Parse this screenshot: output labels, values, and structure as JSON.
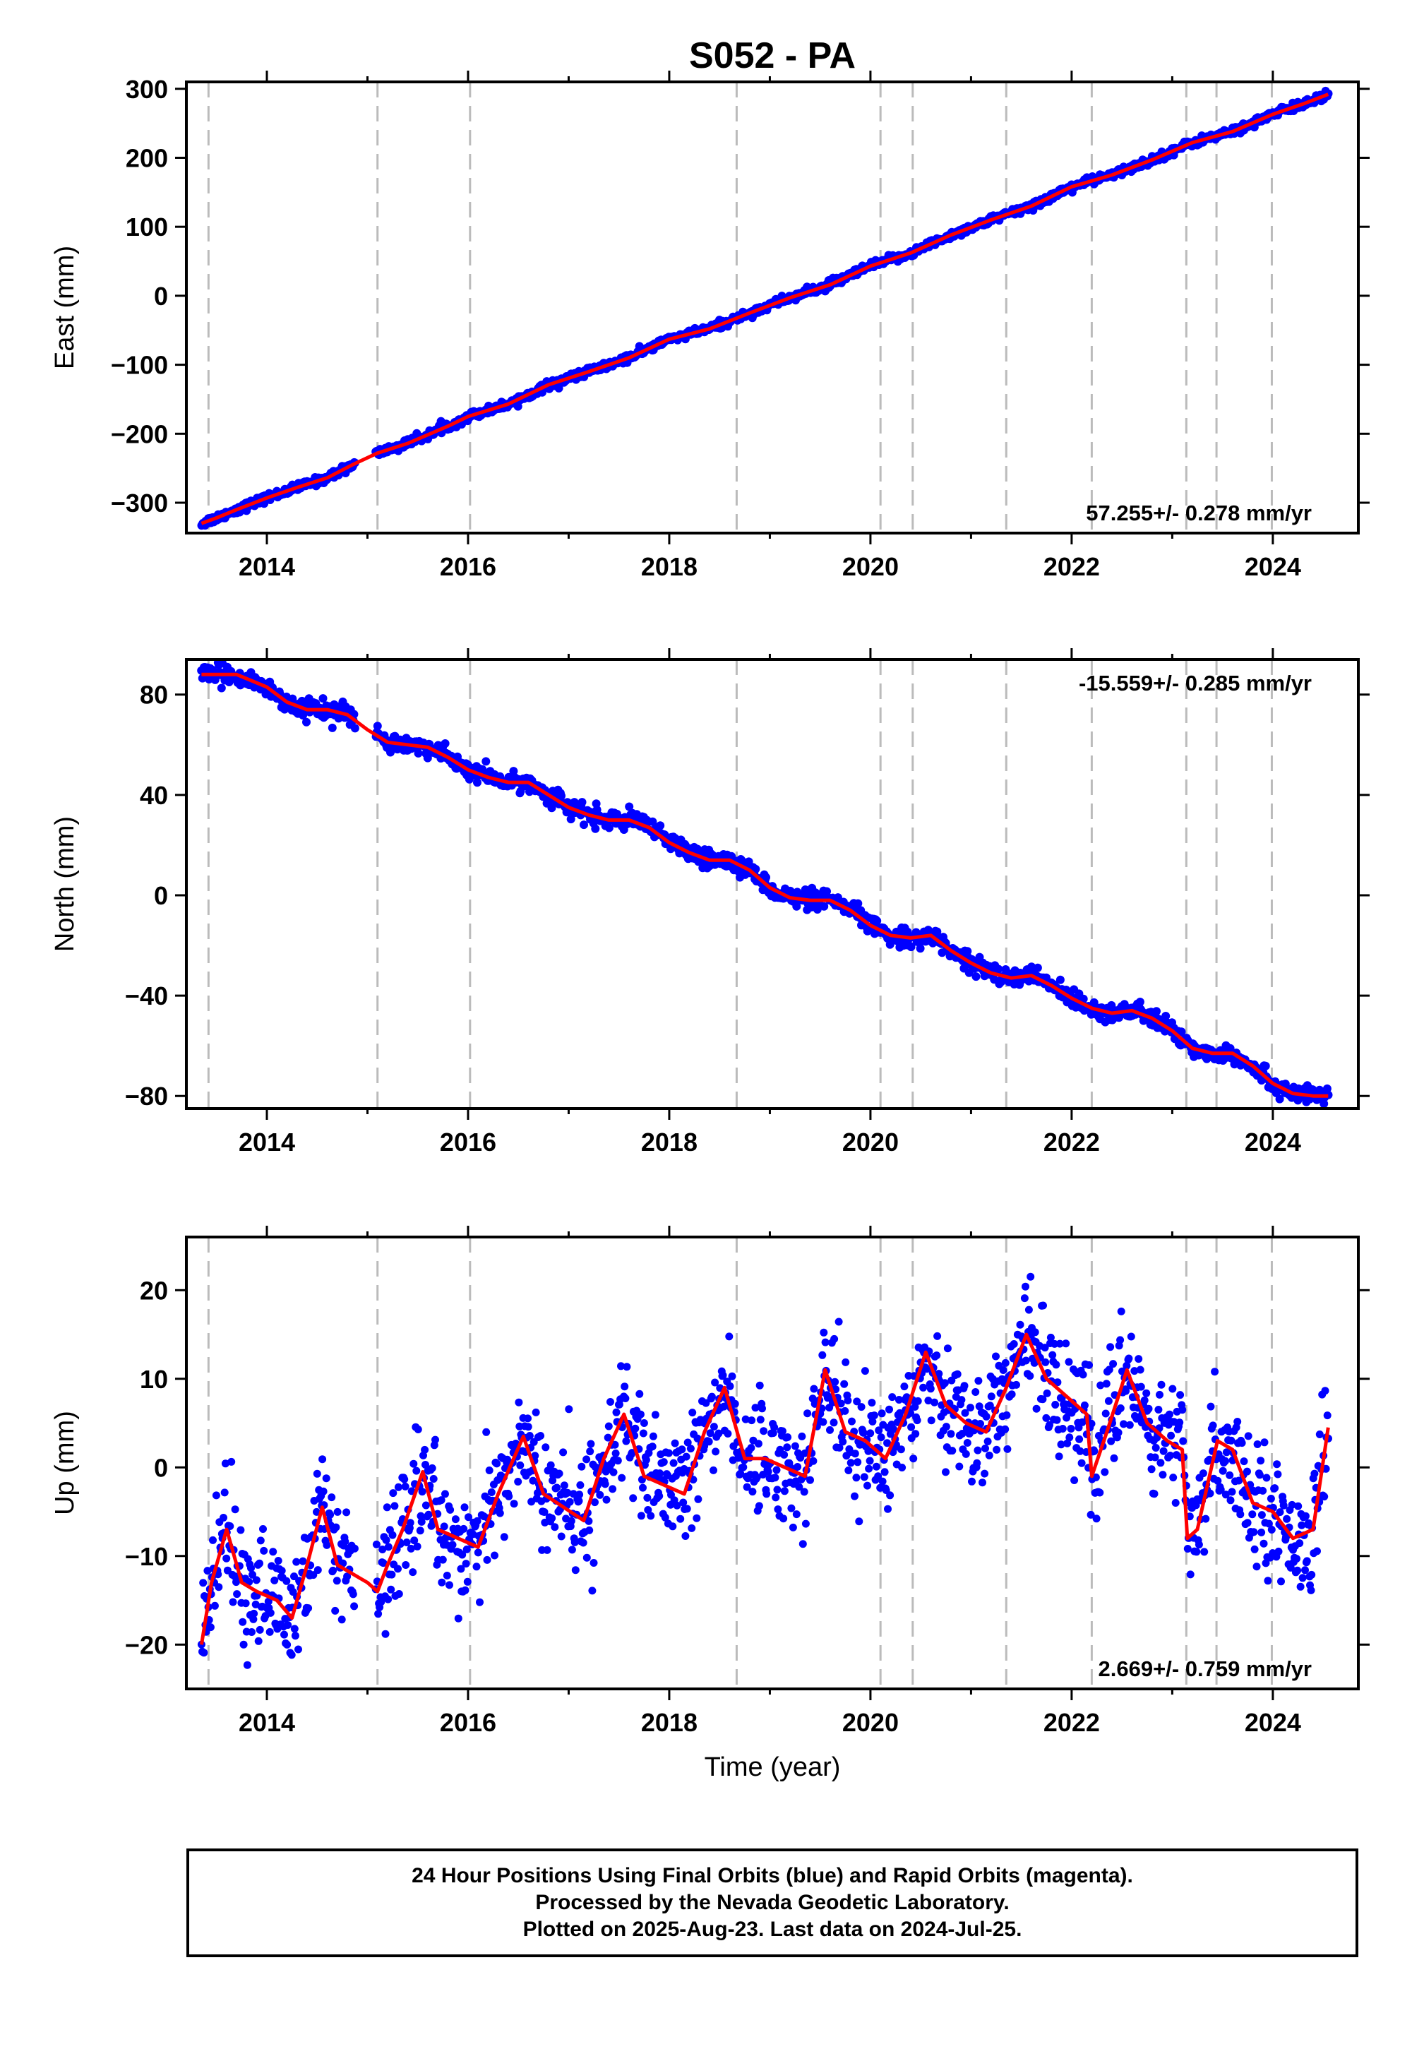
{
  "chart_data": {
    "title": "S052 - PA",
    "type": "scatter",
    "xlabel": "Time (year)",
    "xlim": [
      2013.2,
      2024.85
    ],
    "x_ticks": [
      2014,
      2016,
      2018,
      2020,
      2022,
      2024
    ],
    "x_tick_labels": [
      "2014",
      "2016",
      "2018",
      "2020",
      "2022",
      "2024"
    ],
    "grid": false,
    "equipment_change_lines": [
      2013.42,
      2015.1,
      2016.02,
      2018.67,
      2020.1,
      2020.42,
      2021.35,
      2022.2,
      2023.14,
      2023.44,
      2023.99
    ],
    "colors": {
      "points": "#0000ff",
      "model": "#ff0000",
      "event_lines": "#bbbbbb"
    },
    "panels": [
      {
        "name": "east",
        "ylabel": "East (mm)",
        "ylim": [
          -344,
          310
        ],
        "y_ticks": [
          300,
          200,
          100,
          0,
          -100,
          -200,
          -300
        ],
        "y_tick_labels": [
          "300",
          "200",
          "100",
          "0",
          "−100",
          "−200",
          "−300"
        ],
        "rate_label": "57.255+/- 0.278 mm/yr",
        "model_x": [
          2013.35,
          2013.5,
          2013.7,
          2014.0,
          2014.3,
          2014.6,
          2014.85,
          2015.1,
          2015.4,
          2015.8,
          2016.0,
          2016.4,
          2016.8,
          2017.2,
          2017.6,
          2018.0,
          2018.4,
          2018.8,
          2019.2,
          2019.6,
          2020.0,
          2020.4,
          2020.8,
          2021.2,
          2021.6,
          2022.0,
          2022.4,
          2022.8,
          2023.2,
          2023.6,
          2024.0,
          2024.3,
          2024.55
        ],
        "model_y": [
          -330,
          -322,
          -310,
          -293,
          -278,
          -264,
          -245,
          -228,
          -214,
          -189,
          -175,
          -157,
          -129,
          -110,
          -90,
          -63,
          -48,
          -25,
          -3,
          16,
          43,
          62,
          88,
          110,
          130,
          158,
          175,
          197,
          222,
          238,
          263,
          278,
          292
        ],
        "noise": 3
      },
      {
        "name": "north",
        "ylabel": "North (mm)",
        "ylim": [
          -85,
          94
        ],
        "y_ticks": [
          80,
          40,
          0,
          -40,
          -80
        ],
        "y_tick_labels": [
          "80",
          "40",
          "0",
          "−40",
          "−80"
        ],
        "rate_label": "-15.559+/- 0.285 mm/yr",
        "model_x": [
          2013.35,
          2013.5,
          2013.7,
          2014.0,
          2014.2,
          2014.4,
          2014.6,
          2014.8,
          2015.0,
          2015.2,
          2015.4,
          2015.6,
          2015.8,
          2016.0,
          2016.2,
          2016.4,
          2016.6,
          2016.8,
          2017.0,
          2017.2,
          2017.4,
          2017.6,
          2017.8,
          2018.0,
          2018.2,
          2018.4,
          2018.6,
          2018.8,
          2019.0,
          2019.2,
          2019.4,
          2019.6,
          2019.8,
          2020.0,
          2020.2,
          2020.4,
          2020.6,
          2020.8,
          2021.0,
          2021.2,
          2021.4,
          2021.6,
          2021.8,
          2022.0,
          2022.2,
          2022.4,
          2022.6,
          2022.8,
          2023.0,
          2023.2,
          2023.4,
          2023.6,
          2023.8,
          2024.0,
          2024.2,
          2024.4,
          2024.55
        ],
        "model_y": [
          88,
          88,
          88,
          83,
          77,
          74,
          74,
          72,
          66,
          61,
          60,
          59,
          55,
          50,
          47,
          45,
          45,
          40,
          35,
          32,
          30,
          30,
          27,
          21,
          17,
          14,
          14,
          10,
          3,
          -1,
          -2,
          -2,
          -6,
          -12,
          -16,
          -17,
          -16,
          -22,
          -27,
          -31,
          -33,
          -32,
          -36,
          -41,
          -45,
          -47,
          -46,
          -49,
          -54,
          -61,
          -63,
          -63,
          -68,
          -75,
          -79,
          -80,
          -80
        ],
        "noise": 1.8
      },
      {
        "name": "up",
        "ylabel": "Up (mm)",
        "ylim": [
          -25,
          26
        ],
        "y_ticks": [
          20,
          10,
          0,
          -10,
          -20
        ],
        "y_tick_labels": [
          "20",
          "10",
          "0",
          "−10",
          "−20"
        ],
        "rate_label": "2.669+/- 0.759 mm/yr",
        "model_x": [
          2013.35,
          2013.45,
          2013.6,
          2013.75,
          2013.9,
          2014.1,
          2014.25,
          2014.4,
          2014.55,
          2014.7,
          2014.85,
          2015.0,
          2015.1,
          2015.2,
          2015.35,
          2015.55,
          2015.7,
          2015.9,
          2016.1,
          2016.3,
          2016.55,
          2016.75,
          2016.95,
          2017.15,
          2017.35,
          2017.55,
          2017.75,
          2017.95,
          2018.15,
          2018.35,
          2018.55,
          2018.75,
          2018.95,
          2019.15,
          2019.35,
          2019.55,
          2019.75,
          2019.95,
          2020.15,
          2020.35,
          2020.55,
          2020.75,
          2020.95,
          2021.15,
          2021.35,
          2021.55,
          2021.75,
          2021.95,
          2022.15,
          2022.2,
          2022.35,
          2022.55,
          2022.75,
          2022.95,
          2023.1,
          2023.15,
          2023.25,
          2023.45,
          2023.6,
          2023.8,
          2024.0,
          2024.2,
          2024.4,
          2024.55
        ],
        "model_y": [
          -20,
          -13,
          -7,
          -13,
          -14,
          -15,
          -17,
          -11,
          -4.5,
          -11,
          -12,
          -13,
          -14,
          -11,
          -7,
          -0.5,
          -7,
          -8,
          -9,
          -3,
          3.5,
          -3,
          -4.5,
          -6,
          1,
          6,
          -1,
          -2,
          -3,
          4,
          9,
          1,
          1,
          0,
          -1,
          11,
          4,
          3,
          1,
          6,
          13,
          7,
          5,
          4,
          9,
          15,
          10,
          8,
          6,
          -1,
          4,
          11,
          5,
          3,
          2,
          -8,
          -7,
          3,
          2,
          -4,
          -5,
          -8,
          -7,
          4.5
        ],
        "noise": 3.2
      }
    ]
  },
  "footer": {
    "line1": "24 Hour Positions Using Final Orbits (blue) and Rapid Orbits (magenta).",
    "line2": "Processed by the Nevada Geodetic Laboratory.",
    "line3": "Plotted on 2025-Aug-23. Last data on 2024-Jul-25."
  }
}
